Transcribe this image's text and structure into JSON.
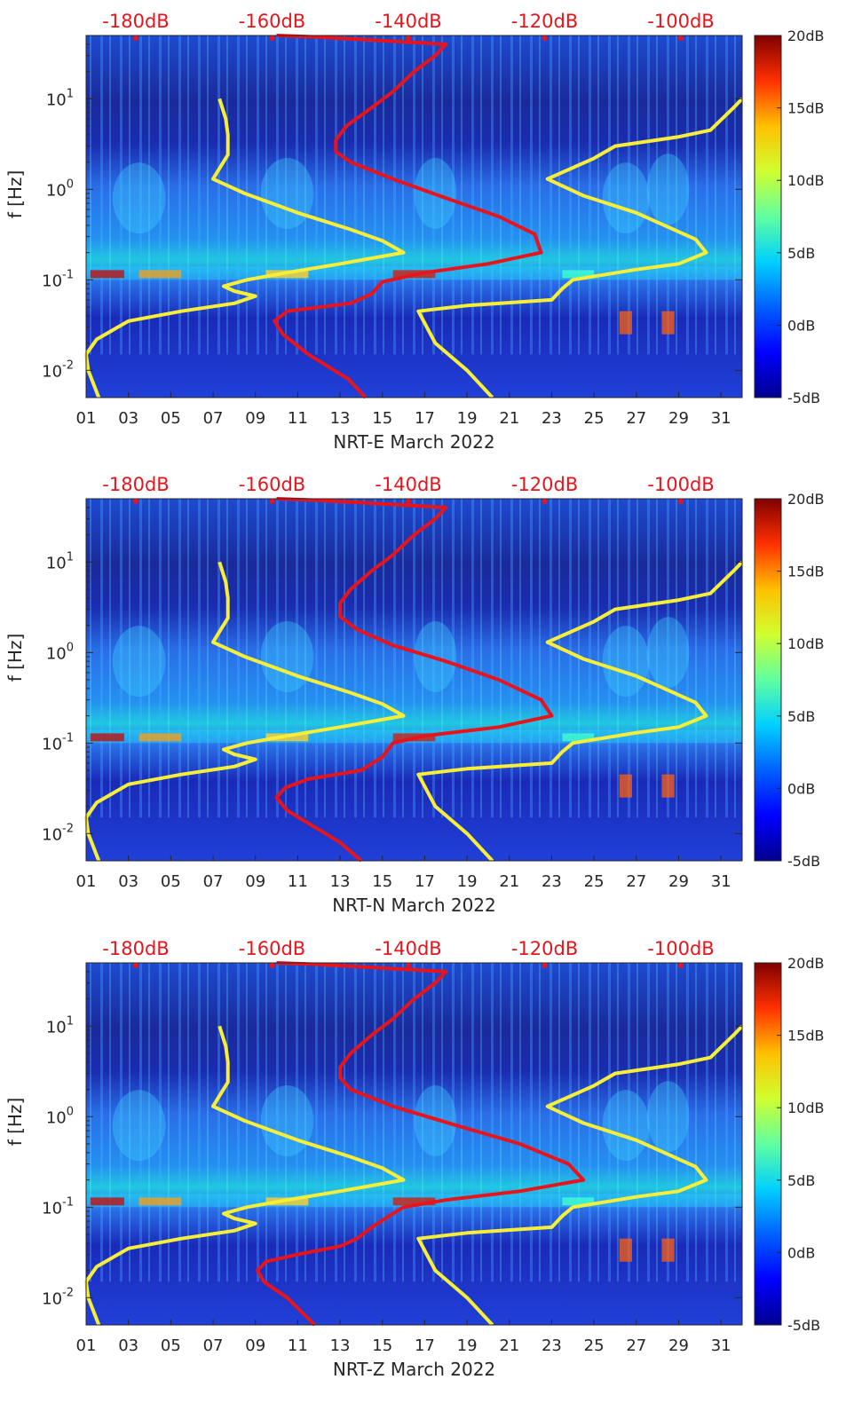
{
  "chart_data": [
    {
      "type": "heatmap",
      "panel": "NRT-E",
      "xlabel": "NRT-E March 2022",
      "ylabel": "f [Hz]",
      "x_ticks": [
        "01",
        "03",
        "05",
        "07",
        "09",
        "11",
        "13",
        "15",
        "17",
        "19",
        "21",
        "23",
        "25",
        "27",
        "29",
        "31"
      ],
      "x_range_days": [
        1,
        32
      ],
      "y_ticks": [
        "10^-2",
        "10^-1",
        "10^0",
        "10^1"
      ],
      "y_range_hz": [
        0.005,
        50
      ],
      "top_axis_ticks": [
        "-180dB",
        "-160dB",
        "-140dB",
        "-120dB",
        "-100dB"
      ],
      "colorbar_ticks": [
        "20dB",
        "15dB",
        "10dB",
        "5dB",
        "0dB",
        "-5dB"
      ],
      "colorbar_range_db": [
        -5,
        20
      ],
      "series": [
        {
          "name": "red-curve",
          "color": "#e8141c",
          "points": [
            [
              14.2,
              0.005
            ],
            [
              13.4,
              0.008
            ],
            [
              11.5,
              0.015
            ],
            [
              10.3,
              0.025
            ],
            [
              9.9,
              0.035
            ],
            [
              10.5,
              0.045
            ],
            [
              13.5,
              0.055
            ],
            [
              14.5,
              0.07
            ],
            [
              15.0,
              0.095
            ],
            [
              17.0,
              0.12
            ],
            [
              20.0,
              0.15
            ],
            [
              22.5,
              0.2
            ],
            [
              22.2,
              0.32
            ],
            [
              20.5,
              0.5
            ],
            [
              18.0,
              0.8
            ],
            [
              15.5,
              1.3
            ],
            [
              13.5,
              2.0
            ],
            [
              12.8,
              2.6
            ],
            [
              12.8,
              3.5
            ],
            [
              13.3,
              5
            ],
            [
              14.5,
              8
            ],
            [
              15.5,
              12
            ],
            [
              16.5,
              20
            ],
            [
              17.5,
              30
            ],
            [
              18.0,
              40
            ],
            [
              12.0,
              48
            ],
            [
              10.0,
              50
            ]
          ]
        },
        {
          "name": "yellow-curve-left",
          "color": "#f7ee3a",
          "points": [
            [
              1.6,
              0.005
            ],
            [
              1.1,
              0.01
            ],
            [
              1.0,
              0.015
            ],
            [
              1.5,
              0.022
            ],
            [
              3.0,
              0.035
            ],
            [
              5.5,
              0.045
            ],
            [
              8.0,
              0.055
            ],
            [
              9.0,
              0.066
            ],
            [
              8.0,
              0.075
            ],
            [
              7.5,
              0.085
            ],
            [
              8.6,
              0.1
            ],
            [
              10.5,
              0.12
            ],
            [
              13.0,
              0.15
            ],
            [
              16.0,
              0.2
            ],
            [
              15.0,
              0.27
            ],
            [
              13.5,
              0.36
            ],
            [
              11.0,
              0.55
            ],
            [
              8.5,
              0.9
            ],
            [
              7.0,
              1.3
            ],
            [
              7.3,
              1.7
            ],
            [
              7.7,
              2.4
            ],
            [
              7.7,
              4
            ],
            [
              7.6,
              6
            ],
            [
              7.3,
              10
            ]
          ]
        },
        {
          "name": "yellow-curve-right",
          "color": "#f7ee3a",
          "points": [
            [
              20.2,
              0.005
            ],
            [
              19.0,
              0.01
            ],
            [
              17.5,
              0.02
            ],
            [
              16.7,
              0.045
            ],
            [
              19.0,
              0.052
            ],
            [
              23.0,
              0.06
            ],
            [
              23.5,
              0.08
            ],
            [
              24.0,
              0.1
            ],
            [
              27.0,
              0.13
            ],
            [
              29.0,
              0.15
            ],
            [
              30.3,
              0.2
            ],
            [
              29.8,
              0.28
            ],
            [
              27.0,
              0.55
            ],
            [
              24.5,
              0.85
            ],
            [
              22.8,
              1.3
            ],
            [
              25.0,
              2.2
            ],
            [
              26.0,
              3.0
            ],
            [
              29.0,
              3.8
            ],
            [
              30.5,
              4.5
            ],
            [
              31.6,
              8
            ],
            [
              32.0,
              10
            ]
          ]
        }
      ]
    },
    {
      "type": "heatmap",
      "panel": "NRT-N",
      "xlabel": "NRT-N March 2022",
      "ylabel": "f [Hz]",
      "x_ticks": [
        "01",
        "03",
        "05",
        "07",
        "09",
        "11",
        "13",
        "15",
        "17",
        "19",
        "21",
        "23",
        "25",
        "27",
        "29",
        "31"
      ],
      "x_range_days": [
        1,
        32
      ],
      "y_ticks": [
        "10^-2",
        "10^-1",
        "10^0",
        "10^1"
      ],
      "y_range_hz": [
        0.005,
        50
      ],
      "top_axis_ticks": [
        "-180dB",
        "-160dB",
        "-140dB",
        "-120dB",
        "-100dB"
      ],
      "colorbar_ticks": [
        "20dB",
        "15dB",
        "10dB",
        "5dB",
        "0dB",
        "-5dB"
      ],
      "colorbar_range_db": [
        -5,
        20
      ],
      "series": [
        {
          "name": "red-curve",
          "color": "#e8141c",
          "points": [
            [
              14.0,
              0.005
            ],
            [
              13.0,
              0.008
            ],
            [
              11.5,
              0.013
            ],
            [
              10.5,
              0.018
            ],
            [
              10.0,
              0.025
            ],
            [
              10.4,
              0.032
            ],
            [
              11.5,
              0.04
            ],
            [
              14.0,
              0.05
            ],
            [
              15.0,
              0.07
            ],
            [
              15.5,
              0.1
            ],
            [
              17.0,
              0.12
            ],
            [
              20.5,
              0.15
            ],
            [
              23.0,
              0.2
            ],
            [
              22.5,
              0.3
            ],
            [
              20.5,
              0.5
            ],
            [
              18.0,
              0.8
            ],
            [
              15.5,
              1.2
            ],
            [
              13.8,
              1.8
            ],
            [
              13.0,
              2.5
            ],
            [
              13.0,
              3.5
            ],
            [
              13.5,
              5
            ],
            [
              14.5,
              8
            ],
            [
              15.5,
              12
            ],
            [
              16.5,
              20
            ],
            [
              17.5,
              30
            ],
            [
              18.0,
              40
            ],
            [
              12.0,
              48
            ],
            [
              10.0,
              50
            ]
          ]
        },
        {
          "name": "yellow-curve-left",
          "color": "#f7ee3a",
          "points": [
            [
              1.6,
              0.005
            ],
            [
              1.1,
              0.01
            ],
            [
              1.0,
              0.015
            ],
            [
              1.5,
              0.022
            ],
            [
              3.0,
              0.035
            ],
            [
              5.5,
              0.045
            ],
            [
              8.0,
              0.055
            ],
            [
              9.0,
              0.066
            ],
            [
              8.0,
              0.075
            ],
            [
              7.5,
              0.085
            ],
            [
              8.6,
              0.1
            ],
            [
              10.5,
              0.12
            ],
            [
              13.0,
              0.15
            ],
            [
              16.0,
              0.2
            ],
            [
              15.0,
              0.27
            ],
            [
              13.5,
              0.36
            ],
            [
              11.0,
              0.55
            ],
            [
              8.5,
              0.9
            ],
            [
              7.0,
              1.3
            ],
            [
              7.3,
              1.7
            ],
            [
              7.7,
              2.4
            ],
            [
              7.7,
              4
            ],
            [
              7.6,
              6
            ],
            [
              7.3,
              10
            ]
          ]
        },
        {
          "name": "yellow-curve-right",
          "color": "#f7ee3a",
          "points": [
            [
              20.2,
              0.005
            ],
            [
              19.0,
              0.01
            ],
            [
              17.5,
              0.02
            ],
            [
              16.7,
              0.045
            ],
            [
              19.0,
              0.052
            ],
            [
              23.0,
              0.06
            ],
            [
              23.5,
              0.08
            ],
            [
              24.0,
              0.1
            ],
            [
              27.0,
              0.13
            ],
            [
              29.0,
              0.15
            ],
            [
              30.3,
              0.2
            ],
            [
              29.8,
              0.28
            ],
            [
              27.0,
              0.55
            ],
            [
              24.5,
              0.85
            ],
            [
              22.8,
              1.3
            ],
            [
              25.0,
              2.2
            ],
            [
              26.0,
              3.0
            ],
            [
              29.0,
              3.8
            ],
            [
              30.5,
              4.5
            ],
            [
              31.6,
              8
            ],
            [
              32.0,
              10
            ]
          ]
        }
      ]
    },
    {
      "type": "heatmap",
      "panel": "NRT-Z",
      "xlabel": "NRT-Z March 2022",
      "ylabel": "f [Hz]",
      "x_ticks": [
        "01",
        "03",
        "05",
        "07",
        "09",
        "11",
        "13",
        "15",
        "17",
        "19",
        "21",
        "23",
        "25",
        "27",
        "29",
        "31"
      ],
      "x_range_days": [
        1,
        32
      ],
      "y_ticks": [
        "10^-2",
        "10^-1",
        "10^0",
        "10^1"
      ],
      "y_range_hz": [
        0.005,
        50
      ],
      "top_axis_ticks": [
        "-180dB",
        "-160dB",
        "-140dB",
        "-120dB",
        "-100dB"
      ],
      "colorbar_ticks": [
        "20dB",
        "15dB",
        "10dB",
        "5dB",
        "0dB",
        "-5dB"
      ],
      "colorbar_range_db": [
        -5,
        20
      ],
      "series": [
        {
          "name": "red-curve",
          "color": "#e8141c",
          "points": [
            [
              11.8,
              0.005
            ],
            [
              10.5,
              0.01
            ],
            [
              9.4,
              0.015
            ],
            [
              9.1,
              0.02
            ],
            [
              9.5,
              0.025
            ],
            [
              11.0,
              0.03
            ],
            [
              13.0,
              0.037
            ],
            [
              13.8,
              0.045
            ],
            [
              14.5,
              0.06
            ],
            [
              15.5,
              0.085
            ],
            [
              16.0,
              0.1
            ],
            [
              18.0,
              0.12
            ],
            [
              21.5,
              0.15
            ],
            [
              24.5,
              0.2
            ],
            [
              23.8,
              0.3
            ],
            [
              21.5,
              0.5
            ],
            [
              18.5,
              0.8
            ],
            [
              15.5,
              1.3
            ],
            [
              13.5,
              2.0
            ],
            [
              13.0,
              2.7
            ],
            [
              13.0,
              3.5
            ],
            [
              13.5,
              5
            ],
            [
              14.5,
              8
            ],
            [
              15.5,
              12
            ],
            [
              16.5,
              20
            ],
            [
              17.5,
              30
            ],
            [
              18.0,
              40
            ],
            [
              12.0,
              48
            ],
            [
              10.0,
              50
            ]
          ]
        },
        {
          "name": "yellow-curve-left",
          "color": "#f7ee3a",
          "points": [
            [
              1.6,
              0.005
            ],
            [
              1.1,
              0.01
            ],
            [
              1.0,
              0.015
            ],
            [
              1.5,
              0.022
            ],
            [
              3.0,
              0.035
            ],
            [
              5.5,
              0.045
            ],
            [
              8.0,
              0.055
            ],
            [
              9.0,
              0.066
            ],
            [
              8.0,
              0.075
            ],
            [
              7.5,
              0.085
            ],
            [
              8.6,
              0.1
            ],
            [
              10.5,
              0.12
            ],
            [
              13.0,
              0.15
            ],
            [
              16.0,
              0.2
            ],
            [
              15.0,
              0.27
            ],
            [
              13.5,
              0.36
            ],
            [
              11.0,
              0.55
            ],
            [
              8.5,
              0.9
            ],
            [
              7.0,
              1.3
            ],
            [
              7.3,
              1.7
            ],
            [
              7.7,
              2.4
            ],
            [
              7.7,
              4
            ],
            [
              7.6,
              6
            ],
            [
              7.3,
              10
            ]
          ]
        },
        {
          "name": "yellow-curve-right",
          "color": "#f7ee3a",
          "points": [
            [
              20.2,
              0.005
            ],
            [
              19.0,
              0.01
            ],
            [
              17.5,
              0.02
            ],
            [
              16.7,
              0.045
            ],
            [
              19.0,
              0.052
            ],
            [
              23.0,
              0.06
            ],
            [
              23.5,
              0.08
            ],
            [
              24.0,
              0.1
            ],
            [
              27.0,
              0.13
            ],
            [
              29.0,
              0.15
            ],
            [
              30.3,
              0.2
            ],
            [
              29.8,
              0.28
            ],
            [
              27.0,
              0.55
            ],
            [
              24.5,
              0.85
            ],
            [
              22.8,
              1.3
            ],
            [
              25.0,
              2.2
            ],
            [
              26.0,
              3.0
            ],
            [
              29.0,
              3.8
            ],
            [
              30.5,
              4.5
            ],
            [
              31.6,
              8
            ],
            [
              32.0,
              10
            ]
          ]
        }
      ]
    }
  ],
  "colors": {
    "colormap": [
      "#00008f",
      "#0000ff",
      "#0080ff",
      "#00ffff",
      "#80ff80",
      "#ffff00",
      "#ff8000",
      "#ff0000",
      "#800000"
    ],
    "top_axis_text": "#e8141c",
    "red_curve": "#e8141c",
    "yellow_curve": "#f7ee3a"
  }
}
